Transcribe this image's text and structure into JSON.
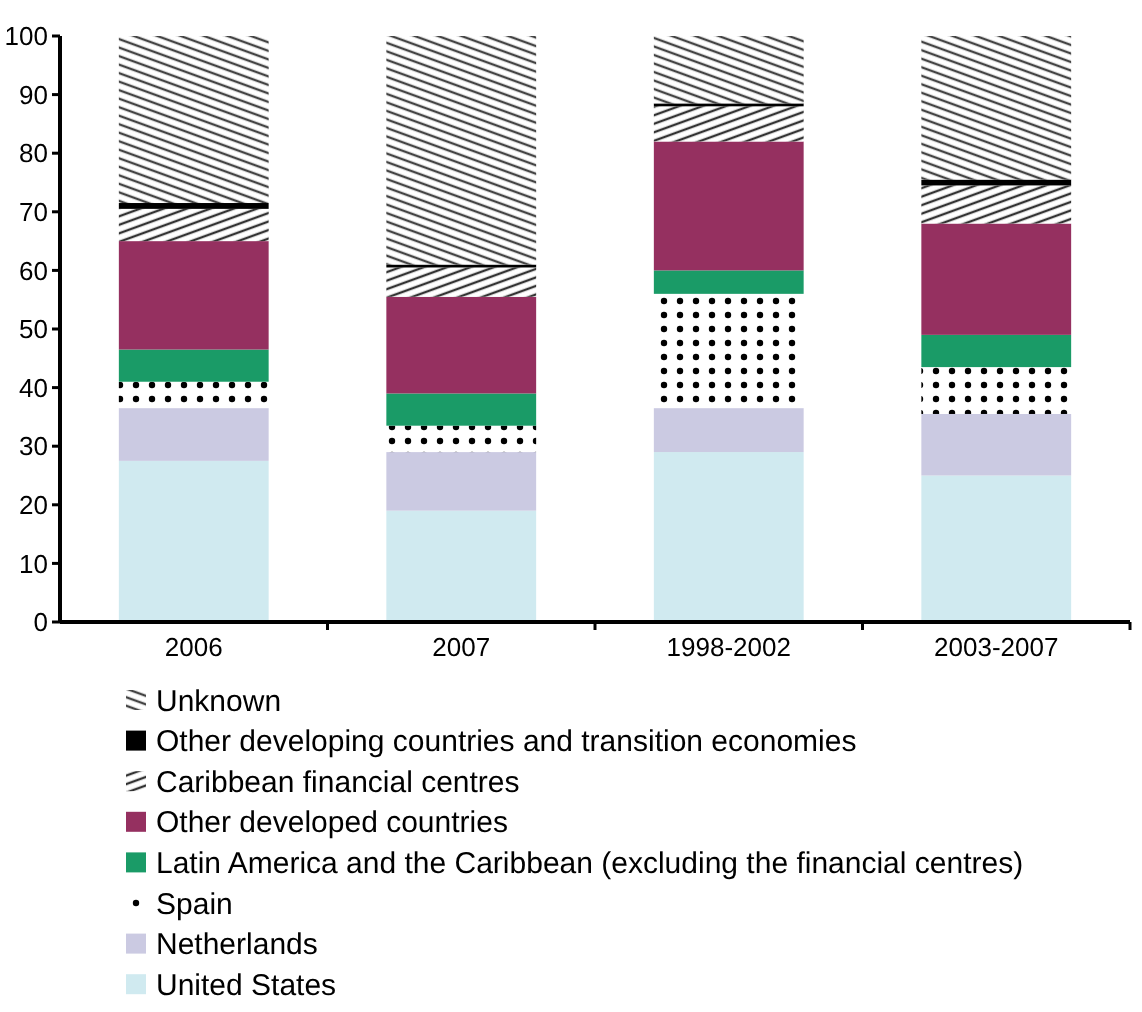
{
  "chart_data": {
    "type": "bar",
    "stacked": true,
    "categories": [
      "2006",
      "2007",
      "1998-2002",
      "2003-2007"
    ],
    "series": [
      {
        "name": "United States",
        "color": "#d0eaf0",
        "values": [
          27.5,
          19,
          29,
          25
        ]
      },
      {
        "name": "Netherlands",
        "color": "#cbcae2",
        "values": [
          9,
          10,
          7.5,
          10.5
        ]
      },
      {
        "name": "Spain",
        "color": "#000000",
        "values": [
          4.5,
          4.5,
          19.5,
          8
        ]
      },
      {
        "name": "Latin America and the Caribbean (excluding the financial centres)",
        "color": "#1a9b67",
        "values": [
          5.5,
          5.5,
          4,
          5.5
        ]
      },
      {
        "name": "Other developed countries",
        "color": "#953060",
        "values": [
          18.5,
          16.5,
          22,
          19
        ]
      },
      {
        "name": "Caribbean financial centres",
        "color": "#333333",
        "values": [
          5.5,
          5,
          6,
          6.5
        ]
      },
      {
        "name": "Other developing countries and transition economies",
        "color": "#000000",
        "values": [
          1,
          0.5,
          0.5,
          1
        ]
      },
      {
        "name": "Unknown",
        "color": "#444444",
        "values": [
          28.5,
          39,
          11.5,
          24.5
        ]
      }
    ],
    "ylim": [
      0,
      100
    ],
    "yticks": [
      0,
      10,
      20,
      30,
      40,
      50,
      60,
      70,
      80,
      90,
      100
    ],
    "legend": "bottom"
  }
}
